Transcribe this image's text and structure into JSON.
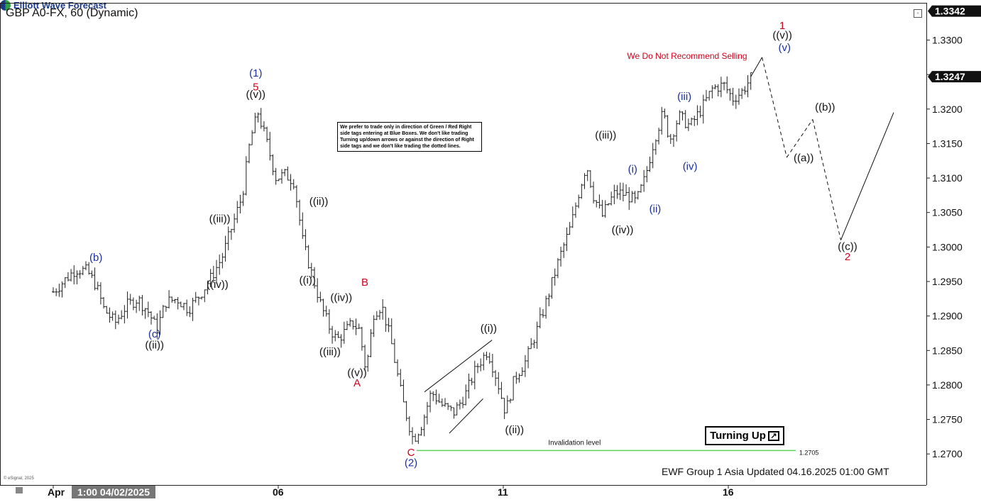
{
  "header": {
    "title": "GBP A0-FX, 60 (Dynamic)",
    "brand": "Elliott Wave Forecast"
  },
  "footer": {
    "updated": "EWF Group 1 Asia Updated 04.16.2025 01:00 GMT",
    "esignal": "© eSignal, 2025"
  },
  "disclaimer": "We prefer to trade only in direction of Green / Red Right side tags entering at Blue Boxes. We don't like trading Turning up/down arrows or against the direction of Right side tags and we don't like trading the dotted lines.",
  "turning_badge": {
    "label": "Turning Up",
    "icon": "arrow-up-right-icon"
  },
  "notice": "We Do Not Recommend Selling",
  "invalidation": {
    "label": "Invalidation level",
    "value": "1.2705",
    "price": 1.2705,
    "color": "#5bd35b"
  },
  "colors": {
    "red": "#d0021b",
    "blue": "#1b2f9e",
    "black": "#111111",
    "axis_bg": "#111111"
  },
  "chart_data": {
    "type": "ohlc-bar",
    "ylim": [
      1.2655,
      1.3354
    ],
    "y_ticks": [
      1.33,
      1.325,
      1.32,
      1.315,
      1.31,
      1.305,
      1.3,
      1.295,
      1.29,
      1.285,
      1.28,
      1.275,
      1.27
    ],
    "y_tick_labels": [
      "1.3300",
      "1.3250",
      "1.3200",
      "1.3150",
      "1.3100",
      "1.3050",
      "1.3000",
      "1.2950",
      "1.2900",
      "1.2850",
      "1.2800",
      "1.2750",
      "1.2700"
    ],
    "price_tags": [
      {
        "label": "1.3342",
        "value": 1.3342
      },
      {
        "label": "1.3247",
        "value": 1.3247
      }
    ],
    "x_ticks": [
      {
        "label": "Apr",
        "t": 0.0
      },
      {
        "label": "06",
        "t": 0.2
      },
      {
        "label": "11",
        "t": 0.4
      },
      {
        "label": "16",
        "t": 0.6
      }
    ],
    "x_cursor_label": "1:00 04/02/2025",
    "series_points": [
      [
        0.0,
        1.2935
      ],
      [
        0.012,
        1.2955
      ],
      [
        0.02,
        1.2968
      ],
      [
        0.03,
        1.2965
      ],
      [
        0.038,
        1.2945
      ],
      [
        0.045,
        1.291
      ],
      [
        0.055,
        1.289
      ],
      [
        0.065,
        1.2915
      ],
      [
        0.075,
        1.2925
      ],
      [
        0.085,
        1.2905
      ],
      [
        0.092,
        1.288
      ],
      [
        0.1,
        1.292
      ],
      [
        0.11,
        1.2925
      ],
      [
        0.12,
        1.291
      ],
      [
        0.13,
        1.293
      ],
      [
        0.14,
        1.2955
      ],
      [
        0.15,
        1.2985
      ],
      [
        0.16,
        1.3035
      ],
      [
        0.168,
        1.3075
      ],
      [
        0.175,
        1.3155
      ],
      [
        0.182,
        1.3195
      ],
      [
        0.19,
        1.315
      ],
      [
        0.198,
        1.31
      ],
      [
        0.206,
        1.3105
      ],
      [
        0.214,
        1.3095
      ],
      [
        0.222,
        1.3005
      ],
      [
        0.23,
        1.296
      ],
      [
        0.238,
        1.2915
      ],
      [
        0.245,
        1.2885
      ],
      [
        0.252,
        1.2865
      ],
      [
        0.258,
        1.2875
      ],
      [
        0.266,
        1.289
      ],
      [
        0.272,
        1.288
      ],
      [
        0.278,
        1.282
      ],
      [
        0.285,
        1.2905
      ],
      [
        0.292,
        1.2915
      ],
      [
        0.3,
        1.2865
      ],
      [
        0.31,
        1.278
      ],
      [
        0.32,
        1.272
      ],
      [
        0.328,
        1.2745
      ],
      [
        0.336,
        1.279
      ],
      [
        0.346,
        1.277
      ],
      [
        0.356,
        1.276
      ],
      [
        0.366,
        1.2785
      ],
      [
        0.376,
        1.2825
      ],
      [
        0.386,
        1.285
      ],
      [
        0.394,
        1.281
      ],
      [
        0.402,
        1.276
      ],
      [
        0.41,
        1.281
      ],
      [
        0.42,
        1.2835
      ],
      [
        0.43,
        1.288
      ],
      [
        0.44,
        1.293
      ],
      [
        0.45,
        1.2985
      ],
      [
        0.46,
        1.303
      ],
      [
        0.468,
        1.3085
      ],
      [
        0.474,
        1.312
      ],
      [
        0.48,
        1.3075
      ],
      [
        0.488,
        1.3045
      ],
      [
        0.494,
        1.3065
      ],
      [
        0.5,
        1.308
      ],
      [
        0.51,
        1.3075
      ],
      [
        0.518,
        1.3065
      ],
      [
        0.526,
        1.31
      ],
      [
        0.534,
        1.3155
      ],
      [
        0.542,
        1.3195
      ],
      [
        0.548,
        1.3155
      ],
      [
        0.556,
        1.319
      ],
      [
        0.566,
        1.3175
      ],
      [
        0.576,
        1.32
      ],
      [
        0.586,
        1.323
      ],
      [
        0.596,
        1.3235
      ],
      [
        0.604,
        1.3215
      ],
      [
        0.612,
        1.3225
      ],
      [
        0.62,
        1.3245
      ]
    ],
    "projection": [
      [
        0.62,
        1.3247
      ],
      [
        0.63,
        1.3275
      ],
      [
        0.652,
        1.313
      ],
      [
        0.675,
        1.3185
      ],
      [
        0.7,
        1.301
      ],
      [
        0.747,
        1.3195
      ]
    ],
    "channel_lines": [
      [
        [
          0.33,
          1.279
        ],
        [
          0.39,
          1.2865
        ]
      ],
      [
        [
          0.352,
          1.273
        ],
        [
          0.382,
          1.278
        ]
      ]
    ],
    "wave_labels": [
      {
        "text": "(b)",
        "t": 0.038,
        "v": 1.298,
        "color": "blue"
      },
      {
        "text": "(c)",
        "t": 0.09,
        "v": 1.2869,
        "color": "blue"
      },
      {
        "text": "((ii))",
        "t": 0.09,
        "v": 1.2853,
        "color": "black"
      },
      {
        "text": "((iii))",
        "t": 0.148,
        "v": 1.3036,
        "color": "black"
      },
      {
        "text": "((iv))",
        "t": 0.146,
        "v": 1.2941,
        "color": "black"
      },
      {
        "text": "(1)",
        "t": 0.18,
        "v": 1.3247,
        "color": "blue"
      },
      {
        "text": "5",
        "t": 0.18,
        "v": 1.3227,
        "color": "red"
      },
      {
        "text": "((v))",
        "t": 0.18,
        "v": 1.3216,
        "color": "black"
      },
      {
        "text": "((ii))",
        "t": 0.236,
        "v": 1.3061,
        "color": "black"
      },
      {
        "text": "((i))",
        "t": 0.226,
        "v": 1.2947,
        "color": "black"
      },
      {
        "text": "((iv))",
        "t": 0.256,
        "v": 1.2922,
        "color": "black"
      },
      {
        "text": "((iii))",
        "t": 0.246,
        "v": 1.2843,
        "color": "black"
      },
      {
        "text": "B",
        "t": 0.277,
        "v": 1.2944,
        "color": "red"
      },
      {
        "text": "((v))",
        "t": 0.27,
        "v": 1.2813,
        "color": "black"
      },
      {
        "text": "A",
        "t": 0.27,
        "v": 1.2798,
        "color": "red"
      },
      {
        "text": "C",
        "t": 0.318,
        "v": 1.2697,
        "color": "red"
      },
      {
        "text": "(2)",
        "t": 0.318,
        "v": 1.2682,
        "color": "blue"
      },
      {
        "text": "((i))",
        "t": 0.387,
        "v": 1.2877,
        "color": "black"
      },
      {
        "text": "((ii))",
        "t": 0.41,
        "v": 1.273,
        "color": "black"
      },
      {
        "text": "((iii))",
        "t": 0.491,
        "v": 1.3157,
        "color": "black"
      },
      {
        "text": "((iv))",
        "t": 0.506,
        "v": 1.302,
        "color": "black"
      },
      {
        "text": "(i)",
        "t": 0.515,
        "v": 1.3108,
        "color": "blue"
      },
      {
        "text": "(ii)",
        "t": 0.535,
        "v": 1.305,
        "color": "blue"
      },
      {
        "text": "(iii)",
        "t": 0.561,
        "v": 1.3213,
        "color": "blue"
      },
      {
        "text": "(iv)",
        "t": 0.566,
        "v": 1.3112,
        "color": "blue"
      },
      {
        "text": "1",
        "t": 0.648,
        "v": 1.3316,
        "color": "red"
      },
      {
        "text": "((v))",
        "t": 0.648,
        "v": 1.3302,
        "color": "black"
      },
      {
        "text": "(v)",
        "t": 0.65,
        "v": 1.3284,
        "color": "blue"
      },
      {
        "text": "((b))",
        "t": 0.686,
        "v": 1.3198,
        "color": "black"
      },
      {
        "text": "((a))",
        "t": 0.667,
        "v": 1.3124,
        "color": "black"
      },
      {
        "text": "((c))",
        "t": 0.706,
        "v": 1.2996,
        "color": "black"
      },
      {
        "text": "2",
        "t": 0.706,
        "v": 1.2981,
        "color": "red"
      }
    ]
  }
}
